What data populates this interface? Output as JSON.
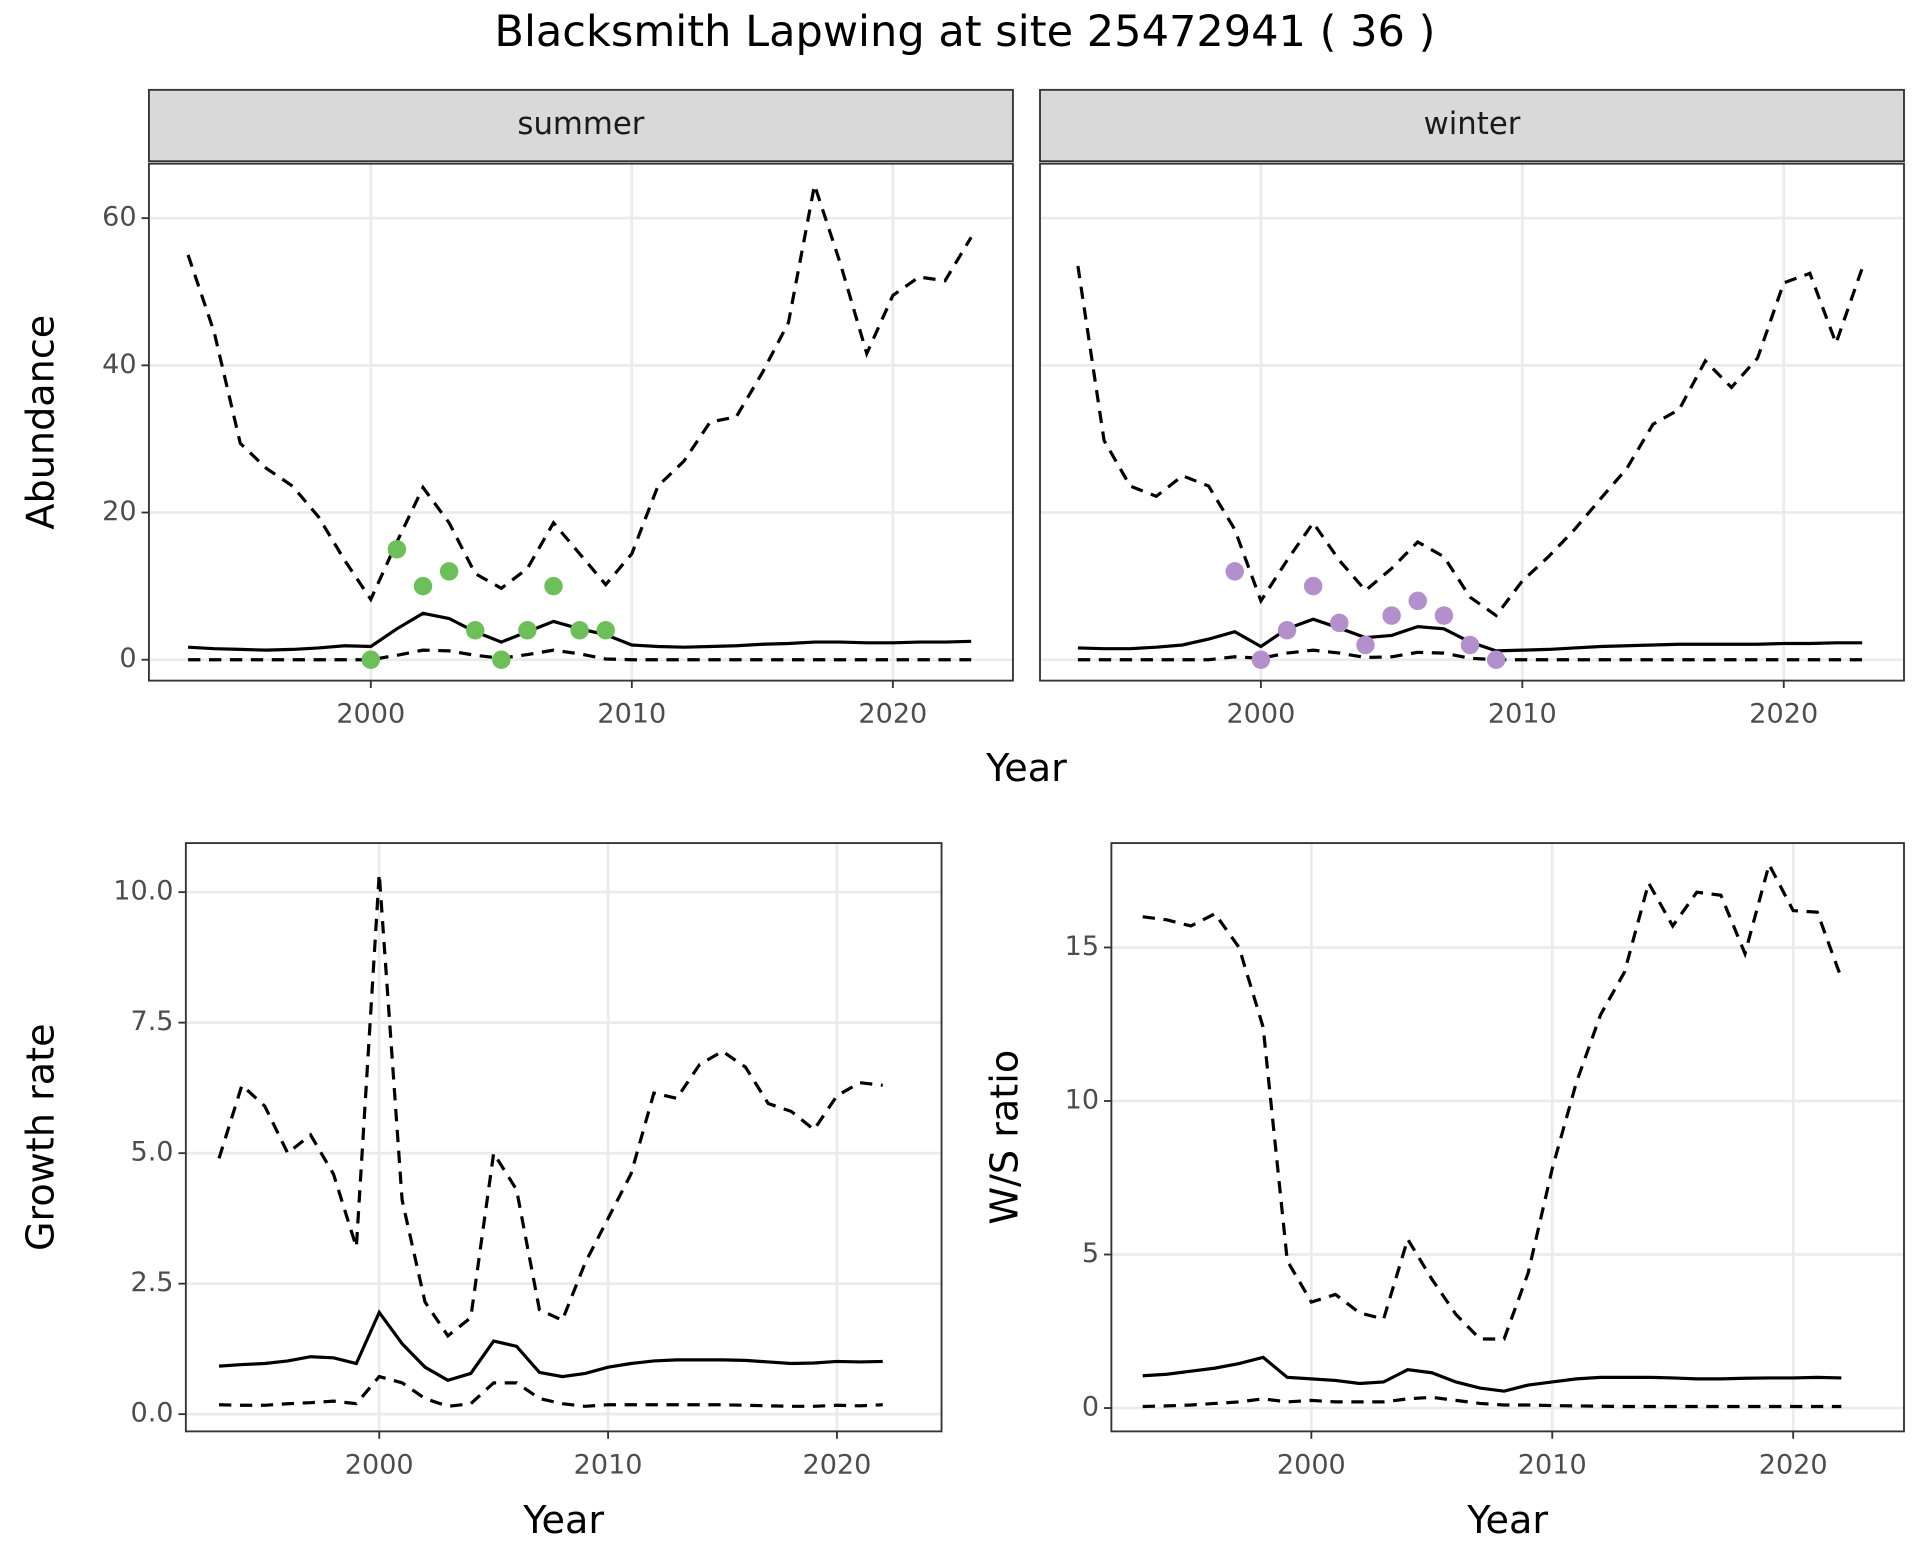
{
  "title": "Blacksmith Lapwing at site 25472941 ( 36 )",
  "chart_data": [
    {
      "type": "line",
      "strip": "summer",
      "ylabel": "Abundance",
      "xlabel": "Year",
      "xlim": [
        1991.5,
        2024.6
      ],
      "ylim": [
        -2.84,
        67.4
      ],
      "xticks": [
        2000,
        2010,
        2020
      ],
      "yticks": [
        0,
        20,
        40,
        60
      ],
      "grid": true,
      "ytick_labels": true,
      "x": [
        1993,
        1994,
        1995,
        1996,
        1997,
        1998,
        1999,
        2000,
        2001,
        2002,
        2003,
        2004,
        2005,
        2006,
        2007,
        2008,
        2009,
        2010,
        2011,
        2012,
        2013,
        2014,
        2015,
        2016,
        2017,
        2018,
        2019,
        2020,
        2021,
        2022,
        2023
      ],
      "series": [
        {
          "style": "dashed",
          "color": "#000000",
          "values": [
            55,
            44.5,
            29.4,
            26,
            23.6,
            19.4,
            13.5,
            8.2,
            16,
            23.4,
            18.6,
            11.7,
            9.7,
            12.4,
            18.6,
            14.4,
            10.2,
            14.4,
            23.6,
            27,
            32.3,
            33,
            39,
            45.8,
            64.5,
            53.7,
            41.6,
            49.5,
            52,
            51.5,
            57.4
          ]
        },
        {
          "style": "solid",
          "color": "#000000",
          "values": [
            1.7,
            1.5,
            1.4,
            1.3,
            1.4,
            1.6,
            1.9,
            1.8,
            4.2,
            6.3,
            5.6,
            3.8,
            2.4,
            3.8,
            5.2,
            4.2,
            3.4,
            2.0,
            1.8,
            1.7,
            1.8,
            1.9,
            2.1,
            2.2,
            2.4,
            2.4,
            2.3,
            2.3,
            2.4,
            2.4,
            2.5
          ]
        },
        {
          "style": "dashed",
          "color": "#000000",
          "values": [
            0,
            0,
            0,
            0,
            0,
            0,
            0,
            0,
            0.6,
            1.3,
            1.2,
            0.6,
            0.2,
            0.7,
            1.3,
            0.8,
            0.1,
            0,
            0,
            0,
            0,
            0,
            0,
            0,
            0,
            0,
            0,
            0,
            0,
            0,
            0
          ]
        },
        {
          "type": "points",
          "color": "#6dbf5a",
          "x": [
            2000,
            2001,
            2002,
            2003,
            2004,
            2005,
            2006,
            2007,
            2008,
            2009
          ],
          "values": [
            0,
            15,
            10,
            12,
            4,
            0,
            4,
            10,
            4,
            4
          ]
        }
      ]
    },
    {
      "type": "line",
      "strip": "winter",
      "xlim": [
        1991.55,
        2024.6
      ],
      "ylim": [
        -2.84,
        67.4
      ],
      "xticks": [
        2000,
        2010,
        2020
      ],
      "yticks": [
        0,
        20,
        40,
        60
      ],
      "grid": true,
      "ytick_labels": false,
      "x": [
        1993,
        1994,
        1995,
        1996,
        1997,
        1998,
        1999,
        2000,
        2001,
        2002,
        2003,
        2004,
        2005,
        2006,
        2007,
        2008,
        2009,
        2010,
        2011,
        2012,
        2013,
        2014,
        2015,
        2016,
        2017,
        2018,
        2019,
        2020,
        2021,
        2022,
        2023
      ],
      "series": [
        {
          "style": "dashed",
          "color": "#000000",
          "values": [
            53.5,
            29.8,
            23.6,
            22.2,
            25,
            23.6,
            17.7,
            8,
            13.5,
            18.6,
            13.5,
            9.4,
            12.4,
            16,
            14,
            8.5,
            6,
            10.7,
            14,
            17.7,
            21.9,
            26,
            32,
            34,
            40.6,
            37,
            41,
            51.2,
            52.5,
            43,
            53.2
          ]
        },
        {
          "style": "solid",
          "color": "#000000",
          "values": [
            1.6,
            1.5,
            1.5,
            1.7,
            2.0,
            2.8,
            3.8,
            1.8,
            4.2,
            5.5,
            4.3,
            3.0,
            3.3,
            4.5,
            4.2,
            2.4,
            1.2,
            1.3,
            1.4,
            1.6,
            1.8,
            1.9,
            2.0,
            2.1,
            2.1,
            2.1,
            2.1,
            2.2,
            2.2,
            2.3,
            2.3
          ]
        },
        {
          "style": "dashed",
          "color": "#000000",
          "values": [
            0,
            0,
            0,
            0,
            0,
            0,
            0.4,
            0.2,
            0.9,
            1.3,
            0.9,
            0.3,
            0.4,
            1.0,
            0.9,
            0.2,
            0,
            0,
            0,
            0,
            0,
            0,
            0,
            0,
            0,
            0,
            0,
            0,
            0,
            0,
            0
          ]
        },
        {
          "type": "points",
          "color": "#b38fcb",
          "x": [
            1999,
            2000,
            2001,
            2002,
            2003,
            2004,
            2005,
            2006,
            2007,
            2008,
            2009
          ],
          "values": [
            12,
            0,
            4,
            10,
            5,
            2,
            6,
            8,
            6,
            2,
            0
          ]
        }
      ]
    },
    {
      "type": "line",
      "ylabel": "Growth rate",
      "xlabel": "Year",
      "xlim": [
        1991.55,
        2024.57
      ],
      "ylim": [
        -0.33,
        10.94
      ],
      "xticks": [
        2000,
        2010,
        2020
      ],
      "yticks": [
        {
          "value": 0,
          "label": "0.0"
        },
        2.5,
        {
          "value": 5,
          "label": "5.0"
        },
        7.5,
        {
          "value": 10,
          "label": "10.0"
        }
      ],
      "grid": true,
      "ytick_labels": true,
      "x": [
        1993,
        1994,
        1995,
        1996,
        1997,
        1998,
        1999,
        2000,
        2001,
        2002,
        2003,
        2004,
        2005,
        2006,
        2007,
        2008,
        2009,
        2010,
        2011,
        2012,
        2013,
        2014,
        2015,
        2016,
        2017,
        2018,
        2019,
        2020,
        2021,
        2022
      ],
      "series": [
        {
          "style": "dashed",
          "color": "#000000",
          "values": [
            4.9,
            6.3,
            5.9,
            5.0,
            5.35,
            4.6,
            3.2,
            10.35,
            4.1,
            2.15,
            1.5,
            1.85,
            5.0,
            4.3,
            2.0,
            1.8,
            2.9,
            3.75,
            4.6,
            6.15,
            6.05,
            6.7,
            6.95,
            6.65,
            5.95,
            5.8,
            5.45,
            6.1,
            6.35,
            6.3
          ]
        },
        {
          "style": "solid",
          "color": "#000000",
          "values": [
            0.92,
            0.95,
            0.97,
            1.02,
            1.1,
            1.08,
            0.97,
            1.95,
            1.35,
            0.9,
            0.65,
            0.78,
            1.4,
            1.3,
            0.8,
            0.72,
            0.78,
            0.9,
            0.97,
            1.02,
            1.04,
            1.04,
            1.04,
            1.03,
            1.0,
            0.97,
            0.98,
            1.01,
            1.0,
            1.01
          ]
        },
        {
          "style": "dashed",
          "color": "#000000",
          "values": [
            0.18,
            0.17,
            0.17,
            0.2,
            0.22,
            0.25,
            0.2,
            0.72,
            0.6,
            0.3,
            0.15,
            0.2,
            0.6,
            0.6,
            0.3,
            0.2,
            0.15,
            0.18,
            0.18,
            0.18,
            0.18,
            0.18,
            0.18,
            0.17,
            0.16,
            0.15,
            0.15,
            0.17,
            0.16,
            0.18
          ]
        }
      ]
    },
    {
      "type": "line",
      "ylabel": "W/S ratio",
      "xlabel": "Year",
      "xlim": [
        1991.7,
        2024.6
      ],
      "ylim": [
        -0.76,
        18.4
      ],
      "xticks": [
        2000,
        2010,
        2020
      ],
      "yticks": [
        0,
        5,
        10,
        15
      ],
      "grid": true,
      "ytick_labels": true,
      "x": [
        1993,
        1994,
        1995,
        1996,
        1997,
        1998,
        1999,
        2000,
        2001,
        2002,
        2003,
        2004,
        2005,
        2006,
        2007,
        2008,
        2009,
        2010,
        2011,
        2012,
        2013,
        2014,
        2015,
        2016,
        2017,
        2018,
        2019,
        2020,
        2021,
        2022
      ],
      "series": [
        {
          "style": "dashed",
          "color": "#000000",
          "values": [
            16.0,
            15.9,
            15.7,
            16.1,
            15.0,
            12.4,
            4.8,
            3.45,
            3.7,
            3.1,
            2.9,
            5.5,
            4.2,
            3.05,
            2.25,
            2.25,
            4.4,
            7.8,
            10.6,
            12.8,
            14.2,
            17.1,
            15.7,
            16.8,
            16.7,
            14.8,
            17.7,
            16.2,
            16.15,
            14.0
          ]
        },
        {
          "style": "solid",
          "color": "#000000",
          "values": [
            1.05,
            1.1,
            1.2,
            1.3,
            1.45,
            1.65,
            1.0,
            0.95,
            0.9,
            0.8,
            0.85,
            1.25,
            1.15,
            0.85,
            0.65,
            0.55,
            0.75,
            0.85,
            0.95,
            1.0,
            1.0,
            1.0,
            0.98,
            0.95,
            0.95,
            0.97,
            0.98,
            0.98,
            1.0,
            0.98
          ]
        },
        {
          "style": "dashed",
          "color": "#000000",
          "values": [
            0.05,
            0.07,
            0.1,
            0.15,
            0.2,
            0.3,
            0.2,
            0.25,
            0.2,
            0.2,
            0.2,
            0.3,
            0.35,
            0.25,
            0.15,
            0.1,
            0.1,
            0.08,
            0.07,
            0.06,
            0.05,
            0.05,
            0.05,
            0.05,
            0.05,
            0.05,
            0.05,
            0.05,
            0.05,
            0.05
          ]
        }
      ]
    }
  ]
}
